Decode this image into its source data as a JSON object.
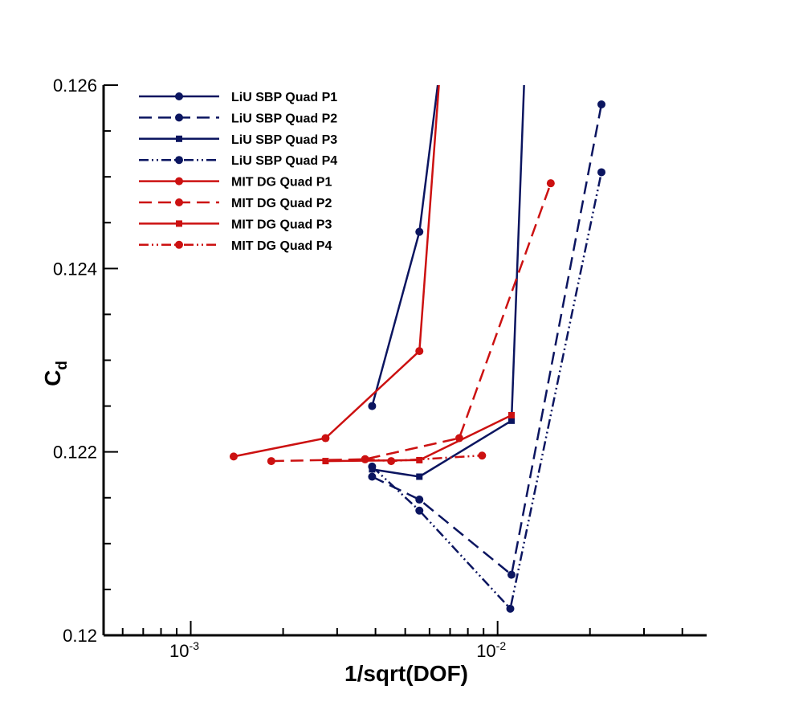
{
  "chart_data": {
    "type": "line",
    "title": "",
    "xlabel": "1/sqrt(DOF)",
    "ylabel_main": "C",
    "ylabel_sub": "d",
    "xscale": "log",
    "xlim": [
      0.00052,
      0.048
    ],
    "ylim": [
      0.12,
      0.126
    ],
    "yticks": [
      {
        "value": 0.12,
        "label": "0.12"
      },
      {
        "value": 0.122,
        "label": "0.122"
      },
      {
        "value": 0.124,
        "label": "0.124"
      },
      {
        "value": 0.126,
        "label": "0.126"
      }
    ],
    "xticks": [
      {
        "value": 0.001,
        "base": "10",
        "exp": "-3"
      },
      {
        "value": 0.01,
        "base": "10",
        "exp": "-2"
      }
    ],
    "grid": false,
    "legend_position": "top-left",
    "colors": {
      "liu": "#0b1560",
      "mit": "#cc1111"
    },
    "series": [
      {
        "name": "LiU SBP Quad P1",
        "color": "#0b1560",
        "dash": "solid",
        "marker": "circle",
        "x": [
          0.0039,
          0.00556,
          0.00675
        ],
        "y": [
          0.1225,
          0.1244,
          0.12665
        ]
      },
      {
        "name": "LiU SBP Quad P2",
        "color": "#0b1560",
        "dash": "dash",
        "marker": "circle",
        "x": [
          0.0039,
          0.00556,
          0.0111,
          0.0218
        ],
        "y": [
          0.12173,
          0.12148,
          0.12066,
          0.12579
        ]
      },
      {
        "name": "LiU SBP Quad P3",
        "color": "#0b1560",
        "dash": "solid",
        "marker": "square",
        "x": [
          0.0039,
          0.00556,
          0.0111,
          0.0124
        ],
        "y": [
          0.12181,
          0.12173,
          0.12234,
          0.12665
        ]
      },
      {
        "name": "LiU SBP Quad P4",
        "color": "#0b1560",
        "dash": "dashdotdot",
        "marker": "circle",
        "x": [
          0.0039,
          0.00556,
          0.011,
          0.0218
        ],
        "y": [
          0.12184,
          0.12136,
          0.12029,
          0.12505
        ]
      },
      {
        "name": "MIT DG Quad P1",
        "color": "#cc1111",
        "dash": "solid",
        "marker": "circle",
        "x": [
          0.00138,
          0.00275,
          0.00556,
          0.00665
        ],
        "y": [
          0.12195,
          0.12215,
          0.1231,
          0.12665
        ]
      },
      {
        "name": "MIT DG Quad P2",
        "color": "#cc1111",
        "dash": "dash",
        "marker": "circle",
        "x": [
          0.00183,
          0.0037,
          0.0075,
          0.0149
        ],
        "y": [
          0.1219,
          0.12192,
          0.12215,
          0.12493
        ]
      },
      {
        "name": "MIT DG Quad P3",
        "color": "#cc1111",
        "dash": "solid",
        "marker": "square",
        "x": [
          0.00275,
          0.00556,
          0.0111
        ],
        "y": [
          0.1219,
          0.12191,
          0.1224
        ]
      },
      {
        "name": "MIT DG Quad P4",
        "color": "#cc1111",
        "dash": "dashdotdot",
        "marker": "circle",
        "x": [
          0.0037,
          0.0045,
          0.0089
        ],
        "y": [
          0.12192,
          0.1219,
          0.12196
        ]
      }
    ]
  }
}
